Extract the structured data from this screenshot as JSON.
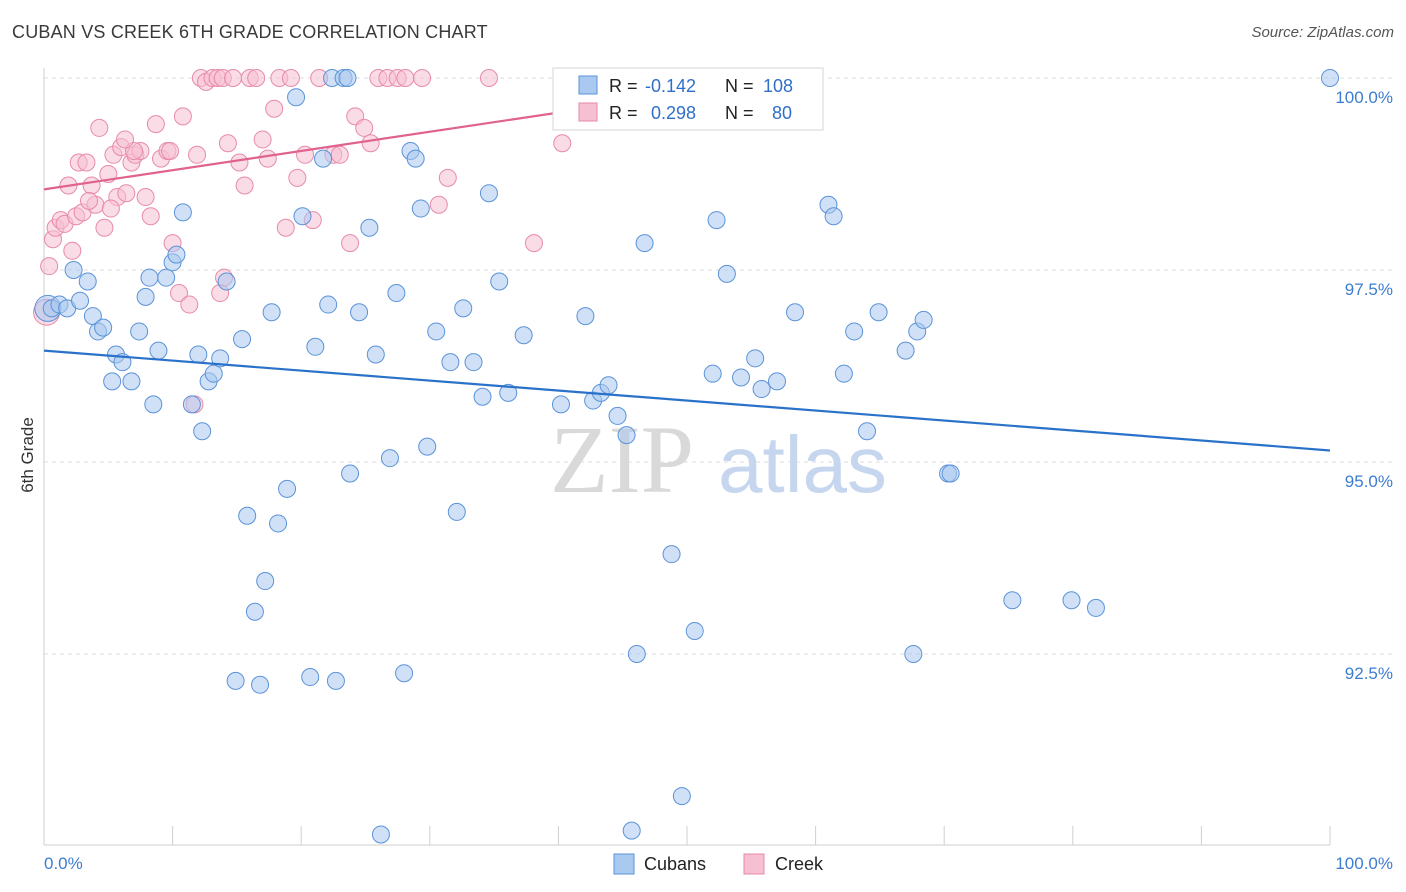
{
  "title": "CUBAN VS CREEK 6TH GRADE CORRELATION CHART",
  "source": "Source: ZipAtlas.com",
  "watermark": {
    "zip": "ZIP",
    "atlas": "atlas"
  },
  "colors": {
    "cubans_fill": "#a9c9f0",
    "cubans_stroke": "#5b93d8",
    "cubans_line": "#2a72c9",
    "creek_fill": "#f6bfd2",
    "creek_stroke": "#e88aab",
    "creek_line": "#e0628f",
    "grid": "#dcdcdc",
    "label": "#3d7dd0"
  },
  "legend": {
    "rows": [
      {
        "r_label": "R =",
        "r_value": "-0.142",
        "n_label": "N =",
        "n_value": "108"
      },
      {
        "r_label": "R =",
        "r_value": "0.298",
        "n_label": "N =",
        "n_value": "80"
      }
    ]
  },
  "bottom_legend": [
    "Cubans",
    "Creek"
  ],
  "chart_data": {
    "type": "scatter",
    "title": "CUBAN VS CREEK 6TH GRADE CORRELATION CHART",
    "xlabel": "",
    "ylabel": "6th Grade",
    "xlim": [
      0,
      100
    ],
    "ylim": [
      90.2,
      100.25
    ],
    "x_tick_labels": [
      "0.0%",
      "100.0%"
    ],
    "y_ticks": [
      92.5,
      95.0,
      97.5,
      100.0
    ],
    "y_tick_labels": [
      "92.5%",
      "95.0%",
      "97.5%",
      "100.0%"
    ],
    "grid": true,
    "series": [
      {
        "name": "Cubans",
        "trend": {
          "x": [
            0,
            100
          ],
          "y": [
            96.45,
            95.15
          ]
        },
        "points": [
          [
            0.3,
            97.0
          ],
          [
            0.6,
            97.0
          ],
          [
            1.2,
            97.05
          ],
          [
            1.8,
            97.0
          ],
          [
            2.3,
            97.5
          ],
          [
            2.8,
            97.1
          ],
          [
            3.4,
            97.35
          ],
          [
            3.8,
            96.9
          ],
          [
            4.2,
            96.7
          ],
          [
            4.6,
            96.75
          ],
          [
            5.3,
            96.05
          ],
          [
            5.6,
            96.4
          ],
          [
            6.1,
            96.3
          ],
          [
            6.8,
            96.05
          ],
          [
            7.4,
            96.7
          ],
          [
            7.9,
            97.15
          ],
          [
            8.5,
            95.75
          ],
          [
            8.9,
            96.45
          ],
          [
            9.5,
            97.4
          ],
          [
            10.0,
            97.6
          ],
          [
            10.3,
            97.7
          ],
          [
            10.8,
            98.25
          ],
          [
            11.5,
            95.75
          ],
          [
            12.0,
            96.4
          ],
          [
            12.3,
            95.4
          ],
          [
            12.8,
            96.05
          ],
          [
            13.2,
            96.15
          ],
          [
            13.7,
            96.35
          ],
          [
            14.2,
            97.35
          ],
          [
            14.9,
            92.15
          ],
          [
            15.4,
            96.6
          ],
          [
            15.8,
            94.3
          ],
          [
            16.4,
            93.05
          ],
          [
            16.8,
            92.1
          ],
          [
            17.2,
            93.45
          ],
          [
            17.7,
            96.95
          ],
          [
            18.2,
            94.2
          ],
          [
            18.9,
            94.65
          ],
          [
            19.6,
            99.75
          ],
          [
            20.1,
            98.2
          ],
          [
            20.7,
            92.2
          ],
          [
            21.1,
            96.5
          ],
          [
            21.7,
            98.95
          ],
          [
            22.1,
            97.05
          ],
          [
            22.4,
            100.0
          ],
          [
            22.7,
            92.15
          ],
          [
            23.3,
            100.0
          ],
          [
            23.8,
            94.85
          ],
          [
            24.5,
            96.95
          ],
          [
            25.3,
            98.05
          ],
          [
            25.8,
            96.4
          ],
          [
            26.2,
            90.15
          ],
          [
            26.9,
            95.05
          ],
          [
            27.4,
            97.2
          ],
          [
            28.0,
            92.25
          ],
          [
            28.5,
            99.05
          ],
          [
            28.9,
            98.95
          ],
          [
            29.3,
            98.3
          ],
          [
            29.8,
            95.2
          ],
          [
            30.5,
            96.7
          ],
          [
            31.6,
            96.3
          ],
          [
            32.1,
            94.35
          ],
          [
            32.6,
            97.0
          ],
          [
            33.4,
            96.3
          ],
          [
            34.1,
            95.85
          ],
          [
            34.6,
            98.5
          ],
          [
            35.4,
            97.35
          ],
          [
            36.1,
            95.9
          ],
          [
            37.3,
            96.65
          ],
          [
            40.2,
            95.75
          ],
          [
            42.1,
            96.9
          ],
          [
            42.7,
            95.8
          ],
          [
            43.3,
            95.9
          ],
          [
            43.9,
            96.0
          ],
          [
            44.6,
            95.6
          ],
          [
            45.3,
            95.35
          ],
          [
            45.7,
            90.2
          ],
          [
            46.1,
            92.5
          ],
          [
            46.7,
            97.85
          ],
          [
            48.8,
            93.8
          ],
          [
            49.6,
            90.65
          ],
          [
            50.6,
            92.8
          ],
          [
            52.0,
            96.15
          ],
          [
            52.3,
            98.15
          ],
          [
            53.1,
            97.45
          ],
          [
            54.2,
            96.1
          ],
          [
            55.3,
            96.35
          ],
          [
            55.8,
            95.95
          ],
          [
            57.0,
            96.05
          ],
          [
            58.4,
            96.95
          ],
          [
            61.0,
            98.35
          ],
          [
            61.4,
            98.2
          ],
          [
            62.2,
            96.15
          ],
          [
            63.0,
            96.7
          ],
          [
            64.0,
            95.4
          ],
          [
            64.9,
            96.95
          ],
          [
            67.0,
            96.45
          ],
          [
            67.6,
            92.5
          ],
          [
            67.9,
            96.7
          ],
          [
            68.4,
            96.85
          ],
          [
            70.3,
            94.85
          ],
          [
            70.5,
            94.85
          ],
          [
            75.3,
            93.2
          ],
          [
            79.9,
            93.2
          ],
          [
            81.8,
            93.1
          ],
          [
            100.0,
            100.0
          ],
          [
            23.6,
            100.0
          ],
          [
            8.2,
            97.4
          ]
        ]
      },
      {
        "name": "Creek",
        "trend": {
          "x": [
            0,
            50
          ],
          "y": [
            98.55,
            99.8
          ]
        },
        "points": [
          [
            0.2,
            96.95
          ],
          [
            0.4,
            97.55
          ],
          [
            0.7,
            97.9
          ],
          [
            0.9,
            98.05
          ],
          [
            1.3,
            98.15
          ],
          [
            1.6,
            98.1
          ],
          [
            1.9,
            98.6
          ],
          [
            2.2,
            97.75
          ],
          [
            2.5,
            98.2
          ],
          [
            2.7,
            98.9
          ],
          [
            3.0,
            98.25
          ],
          [
            3.3,
            98.9
          ],
          [
            3.7,
            98.6
          ],
          [
            4.0,
            98.35
          ],
          [
            4.3,
            99.35
          ],
          [
            4.7,
            98.05
          ],
          [
            5.0,
            98.75
          ],
          [
            5.4,
            99.0
          ],
          [
            5.7,
            98.45
          ],
          [
            6.0,
            99.1
          ],
          [
            6.4,
            98.5
          ],
          [
            6.8,
            98.9
          ],
          [
            7.1,
            99.0
          ],
          [
            7.5,
            99.05
          ],
          [
            7.9,
            98.45
          ],
          [
            8.3,
            98.2
          ],
          [
            8.7,
            99.4
          ],
          [
            9.1,
            98.95
          ],
          [
            9.6,
            99.05
          ],
          [
            10.0,
            97.85
          ],
          [
            10.5,
            97.2
          ],
          [
            10.8,
            99.5
          ],
          [
            11.3,
            97.05
          ],
          [
            11.7,
            95.75
          ],
          [
            12.2,
            100.0
          ],
          [
            12.6,
            99.95
          ],
          [
            13.1,
            100.0
          ],
          [
            13.5,
            100.0
          ],
          [
            13.9,
            100.0
          ],
          [
            14.3,
            99.15
          ],
          [
            14.7,
            100.0
          ],
          [
            15.2,
            98.9
          ],
          [
            15.6,
            98.6
          ],
          [
            16.0,
            100.0
          ],
          [
            16.5,
            100.0
          ],
          [
            17.0,
            99.2
          ],
          [
            17.4,
            98.95
          ],
          [
            17.9,
            99.6
          ],
          [
            18.3,
            100.0
          ],
          [
            18.8,
            98.05
          ],
          [
            19.2,
            100.0
          ],
          [
            19.7,
            98.7
          ],
          [
            20.3,
            99.0
          ],
          [
            20.9,
            98.15
          ],
          [
            21.4,
            100.0
          ],
          [
            22.5,
            99.0
          ],
          [
            23.0,
            99.0
          ],
          [
            23.8,
            97.85
          ],
          [
            24.2,
            99.5
          ],
          [
            24.9,
            99.35
          ],
          [
            25.4,
            99.15
          ],
          [
            26.0,
            100.0
          ],
          [
            26.7,
            100.0
          ],
          [
            27.5,
            100.0
          ],
          [
            28.1,
            100.0
          ],
          [
            29.4,
            100.0
          ],
          [
            30.7,
            98.35
          ],
          [
            31.4,
            98.7
          ],
          [
            34.6,
            100.0
          ],
          [
            38.1,
            97.85
          ],
          [
            40.3,
            99.15
          ],
          [
            41.0,
            100.0
          ],
          [
            11.9,
            99.0
          ],
          [
            9.8,
            99.05
          ],
          [
            7.0,
            99.05
          ],
          [
            13.7,
            97.2
          ],
          [
            14.0,
            97.4
          ],
          [
            3.5,
            98.4
          ],
          [
            5.2,
            98.3
          ],
          [
            6.3,
            99.2
          ]
        ]
      }
    ]
  }
}
